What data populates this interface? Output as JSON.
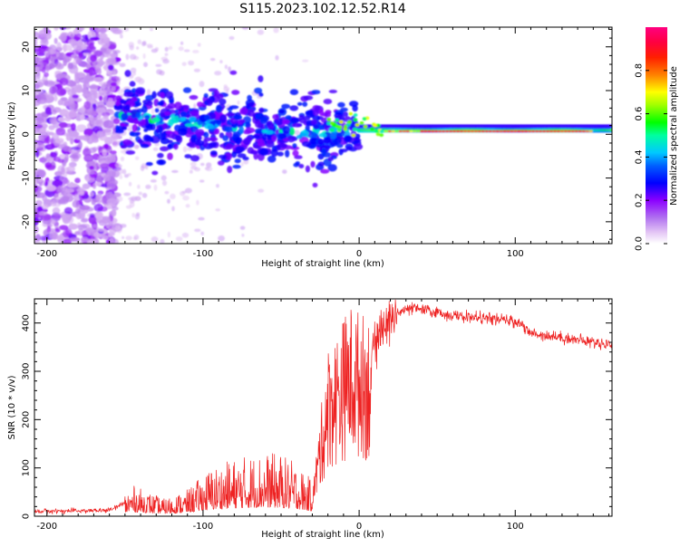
{
  "title": "S115.2023.102.12.52.R14",
  "chart_data": [
    {
      "type": "heatmap",
      "xlabel": "Height of straight line (km)",
      "ylabel": "Frequency (Hz)",
      "xlim": [
        -208,
        162
      ],
      "ylim": [
        -25,
        24.5
      ],
      "xticks": [
        -200,
        -100,
        0,
        100
      ],
      "yticks": [
        -20,
        -10,
        0,
        10,
        20
      ],
      "colorbar": {
        "label": "Normalized spectral amplitude",
        "range": [
          0,
          1
        ],
        "ticks": [
          0.0,
          0.2,
          0.4,
          0.6,
          0.8
        ],
        "colormap": [
          "#ffffff",
          "#e5c8f5",
          "#8b00ff",
          "#0000ff",
          "#00c8ff",
          "#00ff00",
          "#ffff00",
          "#ff8000",
          "#ff0000",
          "#ff0080"
        ]
      },
      "features": {
        "noise_region_km": [
          -208,
          -155
        ],
        "tone_start_km": -155,
        "tone_freq_start_hz": 5,
        "tone_freq_end_hz": 0.5,
        "tone_converge_km": 0
      }
    },
    {
      "type": "line",
      "xlabel": "Height of straight line (km)",
      "ylabel": "SNR (10 * v/v)",
      "xlim": [
        -208,
        162
      ],
      "ylim": [
        0,
        450
      ],
      "xticks": [
        -200,
        -100,
        0,
        100
      ],
      "yticks": [
        0,
        100,
        200,
        300,
        400
      ],
      "color": "#ee2222",
      "trend": [
        [
          -208,
          10
        ],
        [
          -160,
          12
        ],
        [
          -145,
          35
        ],
        [
          -125,
          20
        ],
        [
          -110,
          30
        ],
        [
          -95,
          55
        ],
        [
          -80,
          65
        ],
        [
          -70,
          70
        ],
        [
          -60,
          72
        ],
        [
          -50,
          70
        ],
        [
          -40,
          60
        ],
        [
          -30,
          40
        ],
        [
          -25,
          160
        ],
        [
          -20,
          270
        ],
        [
          -15,
          290
        ],
        [
          -10,
          320
        ],
        [
          -5,
          340
        ],
        [
          5,
          320
        ],
        [
          12,
          370
        ],
        [
          20,
          410
        ],
        [
          28,
          425
        ],
        [
          35,
          430
        ],
        [
          45,
          425
        ],
        [
          60,
          415
        ],
        [
          80,
          410
        ],
        [
          95,
          405
        ],
        [
          104,
          400
        ],
        [
          108,
          380
        ],
        [
          130,
          370
        ],
        [
          150,
          360
        ],
        [
          162,
          355
        ]
      ]
    }
  ]
}
